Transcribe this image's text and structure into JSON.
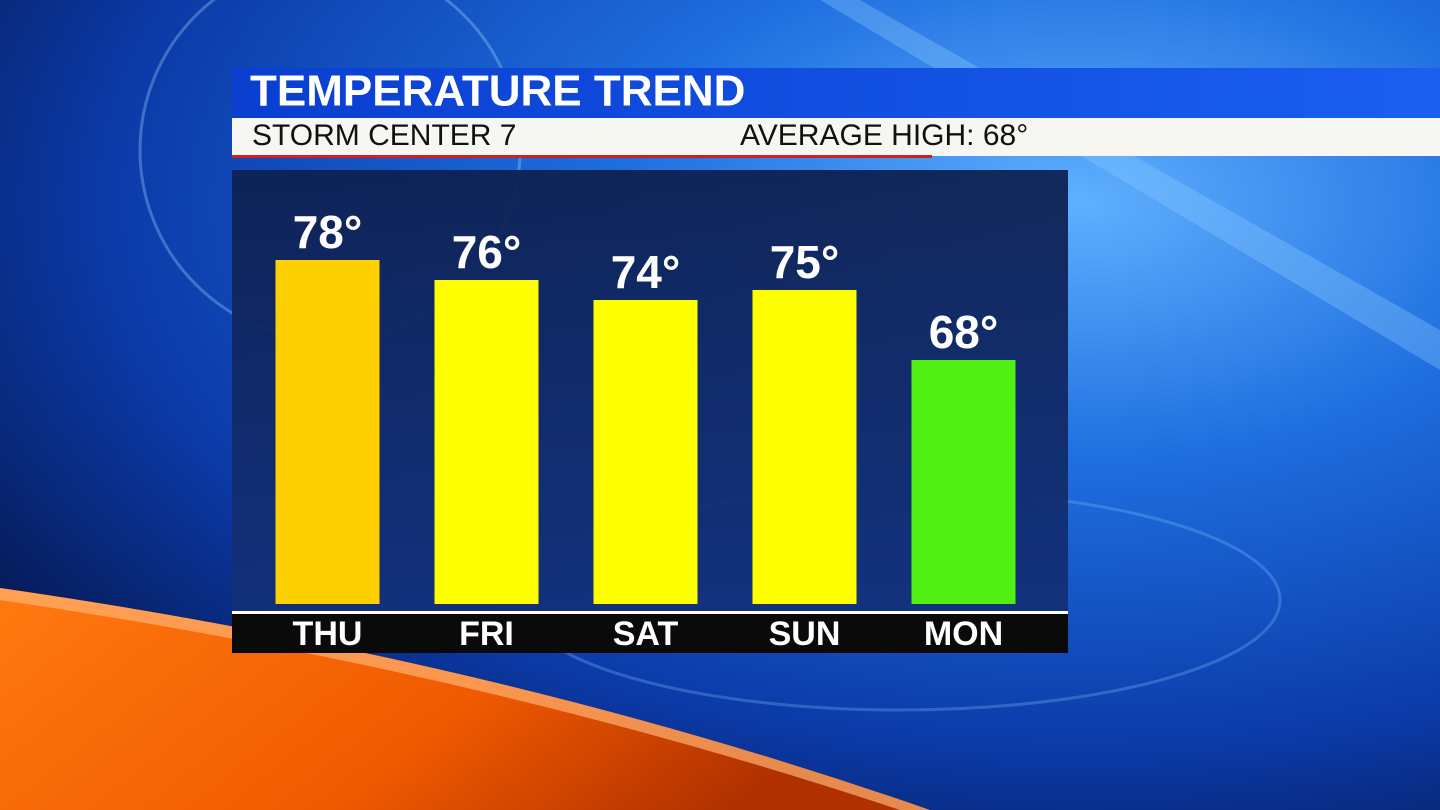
{
  "chart_data": {
    "type": "bar",
    "title": "TEMPERATURE TREND",
    "subtitle": "STORM CENTER 7",
    "annotation": "AVERAGE HIGH: 68°",
    "categories": [
      "THU",
      "FRI",
      "SAT",
      "SUN",
      "MON"
    ],
    "values": [
      78,
      76,
      74,
      75,
      68
    ],
    "value_labels": [
      "78°",
      "76°",
      "74°",
      "75°",
      "68°"
    ],
    "colors": [
      "#ffd000",
      "#ffff00",
      "#ffff00",
      "#ffff00",
      "#4ff012"
    ]
  }
}
